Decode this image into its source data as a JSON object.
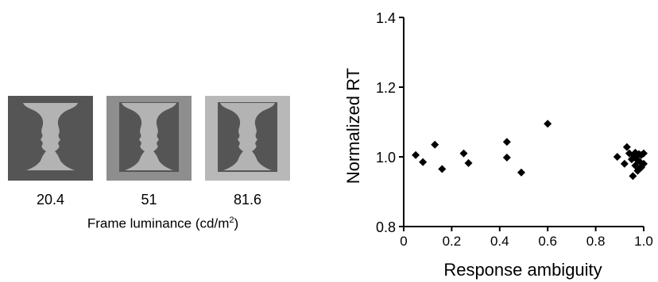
{
  "stimuli": {
    "items": [
      {
        "luminance_label": "20.4",
        "frame_color": "#555555",
        "bg_color": "#555555",
        "vase_color": "#b3b3b3"
      },
      {
        "luminance_label": "51",
        "frame_color": "#8e8e8e",
        "bg_color": "#555555",
        "vase_color": "#b3b3b3"
      },
      {
        "luminance_label": "81.6",
        "frame_color": "#b8b8b8",
        "bg_color": "#555555",
        "vase_color": "#b3b3b3"
      }
    ],
    "caption_main": "Frame luminance (cd/m",
    "caption_sup": "2",
    "caption_end": ")"
  },
  "chart_data": {
    "type": "scatter",
    "xlabel": "Response ambiguity",
    "ylabel": "Normalized RT",
    "xlim": [
      0,
      1.0
    ],
    "ylim": [
      0.8,
      1.4
    ],
    "xticks": [
      0,
      0.2,
      0.4,
      0.6,
      0.8,
      1.0
    ],
    "xtick_labels": [
      "0",
      "0.2",
      "0.4",
      "0.6",
      "0.8",
      "1.0"
    ],
    "yticks": [
      0.8,
      1.0,
      1.2,
      1.4
    ],
    "ytick_labels": [
      "0.8",
      "1.0",
      "1.2",
      "1.4"
    ],
    "marker": "diamond",
    "marker_color": "#000000",
    "grid": false,
    "points": [
      {
        "x": 0.05,
        "y": 1.005
      },
      {
        "x": 0.08,
        "y": 0.985
      },
      {
        "x": 0.13,
        "y": 1.035
      },
      {
        "x": 0.16,
        "y": 0.965
      },
      {
        "x": 0.25,
        "y": 1.01
      },
      {
        "x": 0.27,
        "y": 0.982
      },
      {
        "x": 0.43,
        "y": 1.043
      },
      {
        "x": 0.43,
        "y": 0.998
      },
      {
        "x": 0.49,
        "y": 0.955
      },
      {
        "x": 0.6,
        "y": 1.095
      },
      {
        "x": 0.89,
        "y": 1.0
      },
      {
        "x": 0.92,
        "y": 0.98
      },
      {
        "x": 0.93,
        "y": 1.028
      },
      {
        "x": 0.94,
        "y": 1.01
      },
      {
        "x": 0.95,
        "y": 0.993
      },
      {
        "x": 0.955,
        "y": 0.945
      },
      {
        "x": 0.96,
        "y": 1.005
      },
      {
        "x": 0.965,
        "y": 0.975
      },
      {
        "x": 0.97,
        "y": 1.0
      },
      {
        "x": 0.975,
        "y": 0.96
      },
      {
        "x": 0.98,
        "y": 1.008
      },
      {
        "x": 0.985,
        "y": 0.985
      },
      {
        "x": 0.99,
        "y": 1.005
      },
      {
        "x": 0.99,
        "y": 0.97
      },
      {
        "x": 1.0,
        "y": 1.01
      },
      {
        "x": 1.0,
        "y": 0.98
      },
      {
        "x": 0.975,
        "y": 0.99
      },
      {
        "x": 0.965,
        "y": 1.012
      }
    ]
  }
}
